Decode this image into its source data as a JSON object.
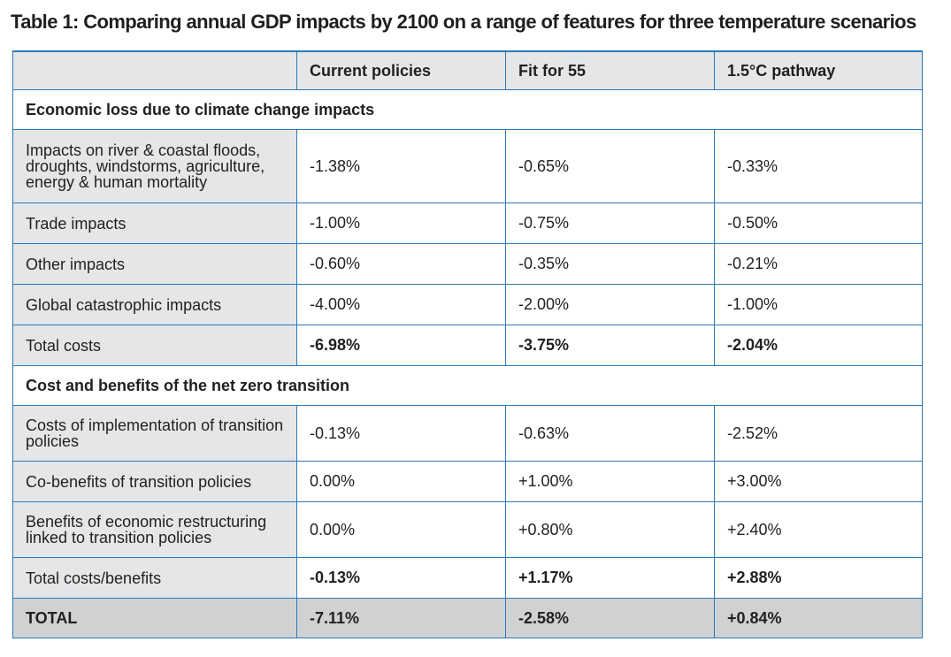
{
  "title": "Table 1: Comparing annual GDP impacts by 2100 on a range of features for three temperature scenarios",
  "columns": [
    "",
    "Current policies",
    "Fit for 55",
    "1.5°C pathway"
  ],
  "sections": [
    {
      "heading": "Economic loss due to climate change impacts",
      "rows": [
        {
          "label": "Impacts on river & coastal floods, droughts, windstorms, agricul­ture, energy & human mortality",
          "values": [
            "-1.38%",
            "-0.65%",
            "-0.33%"
          ]
        },
        {
          "label": "Trade impacts",
          "values": [
            "-1.00%",
            "-0.75%",
            "-0.50%"
          ]
        },
        {
          "label": "Other impacts",
          "values": [
            "-0.60%",
            "-0.35%",
            "-0.21%"
          ]
        },
        {
          "label": "Global catastrophic impacts",
          "values": [
            "-4.00%",
            "-2.00%",
            "-1.00%"
          ]
        },
        {
          "label": "Total costs",
          "values": [
            "-6.98%",
            "-3.75%",
            "-2.04%"
          ]
        }
      ]
    },
    {
      "heading": "Cost and benefits of the net zero transition",
      "rows": [
        {
          "label": "Costs of implementation of transition policies",
          "values": [
            "-0.13%",
            "-0.63%",
            "-2.52%"
          ]
        },
        {
          "label": "Co-benefits of transition policies",
          "values": [
            "0.00%",
            "+1.00%",
            "+3.00%"
          ]
        },
        {
          "label": "Benefits of economic restructur­ing linked to transition policies",
          "values": [
            "0.00%",
            "+0.80%",
            "+2.40%"
          ]
        },
        {
          "label": "Total costs/benefits",
          "values": [
            "-0.13%",
            "+1.17%",
            "+2.88%"
          ]
        }
      ]
    }
  ],
  "total": {
    "label": "TOTAL",
    "values": [
      "-7.11%",
      "-2.58%",
      "+0.84%"
    ]
  }
}
